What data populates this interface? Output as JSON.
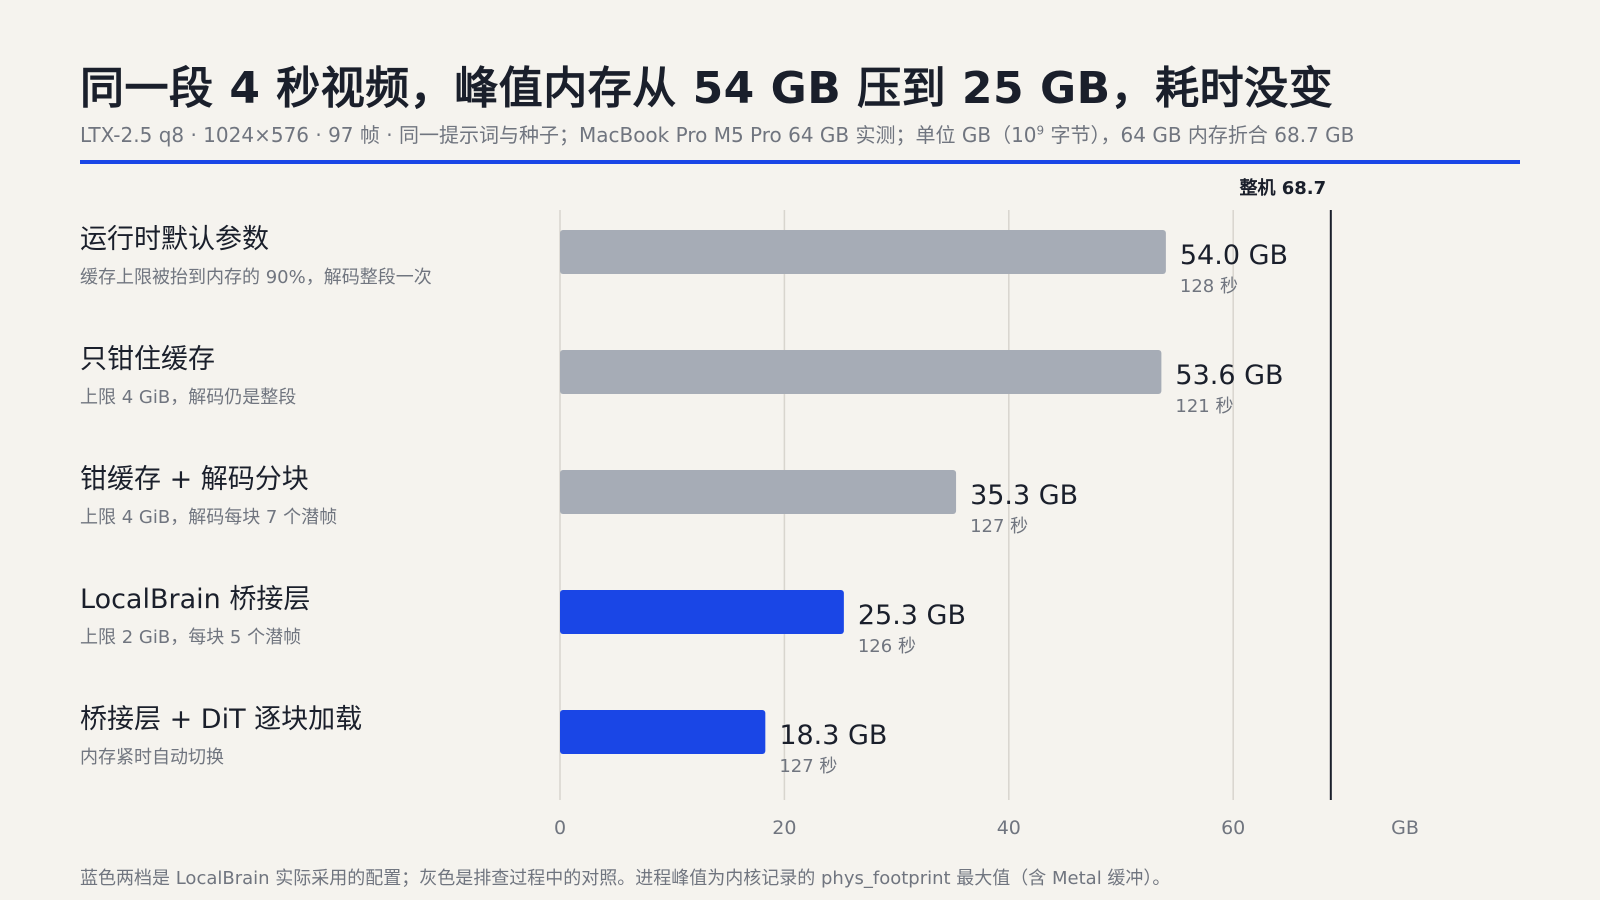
{
  "header": {
    "title": "同一段 4 秒视频，峰值内存从 54 GB 压到 25 GB，耗时没变",
    "subtitle_pre": "LTX-2.5 q8 · 1024×576 · 97 帧 · 同一提示词与种子；MacBook Pro M5 Pro 64 GB 实测；单位 GB（10",
    "subtitle_sup": "9",
    "subtitle_post": " 字节），64 GB 内存折合 68.7 GB"
  },
  "footer": {
    "note": "蓝色两档是 LocalBrain 实际采用的配置；灰色是排查过程中的对照。进程峰值为内核记录的 phys_footprint 最大值（含 Metal 缓冲）。"
  },
  "colors": {
    "gray_bar": "#a6acb6",
    "blue_bar": "#1a46e6",
    "grid": "#d8d5ce",
    "reference": "#1a1f2b",
    "rule": "#1a46e6",
    "muted_text": "#70757f"
  },
  "chart_data": {
    "type": "bar",
    "orientation": "horizontal",
    "categories": [
      "运行时默认参数",
      "只钳住缓存",
      "钳缓存 + 解码分块",
      "LocalBrain 桥接层",
      "桥接层 + DiT 逐块加载"
    ],
    "descriptions": [
      "缓存上限被抬到内存的 90%，解码整段一次",
      "上限 4 GiB，解码仍是整段",
      "上限 4 GiB，解码每块 7 个潜帧",
      "上限 2 GiB，每块 5 个潜帧",
      "内存紧时自动切换"
    ],
    "values": [
      54.0,
      53.6,
      35.3,
      25.3,
      18.3
    ],
    "value_labels": [
      "54.0 GB",
      "53.6 GB",
      "35.3 GB",
      "25.3 GB",
      "18.3 GB"
    ],
    "times": [
      "128 秒",
      "121 秒",
      "127 秒",
      "126 秒",
      "127 秒"
    ],
    "highlight": [
      false,
      false,
      false,
      true,
      true
    ],
    "xlim": [
      0,
      75
    ],
    "xticks": [
      0,
      20,
      40,
      60
    ],
    "xtick_labels": [
      "0",
      "20",
      "40",
      "60"
    ],
    "xlabel": "GB",
    "grid": true,
    "reference_line": {
      "value": 68.7,
      "label": "整机 68.7"
    }
  }
}
